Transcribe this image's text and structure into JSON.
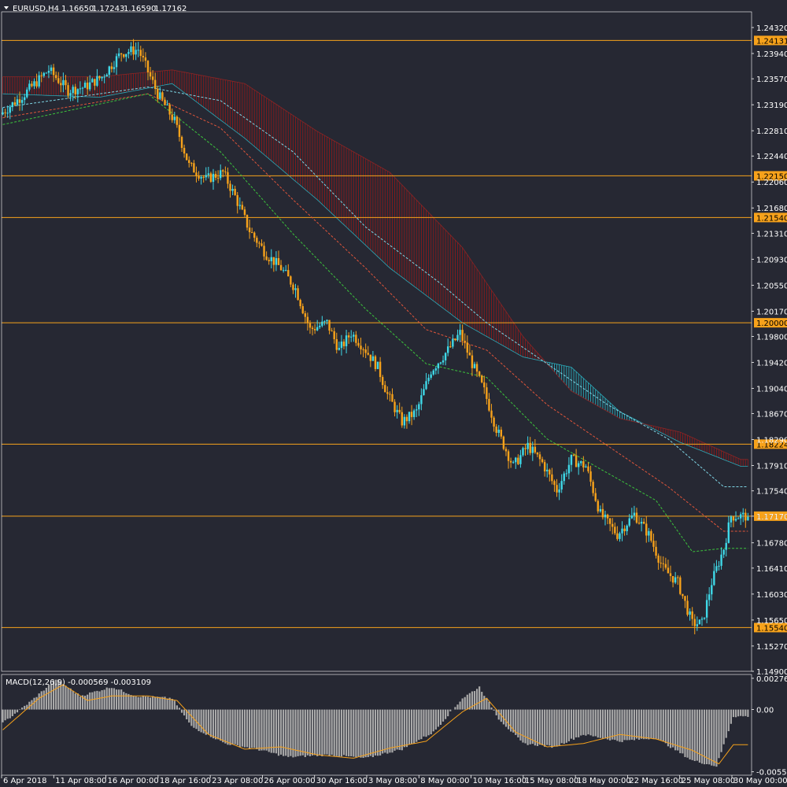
{
  "header": {
    "symbol": "EURUSD,H4",
    "open": "1.16650",
    "high": "1.17243",
    "low": "1.16590",
    "close": "1.17162"
  },
  "macd": {
    "label": "MACD(12,26,9) -0.000569 -0.003109",
    "ticks": [
      "0.00276",
      "0.00",
      "-0.00550"
    ]
  },
  "colors": {
    "background": "#262833",
    "bull": "#3fd9e8",
    "bear": "#f7a21b",
    "level": "#f7a21b",
    "cloud_bear": "#8c1a1a",
    "cloud_bull": "#2aa9b8",
    "macd_hist": "#a9a9a9",
    "macd_signal": "#f7a21b"
  },
  "chart_data": {
    "type": "candlestick",
    "ylim": [
      1.149,
      1.2455
    ],
    "y_ticks": [
      "1.24320",
      "1.23940",
      "1.23570",
      "1.23190",
      "1.22810",
      "1.22440",
      "1.22060",
      "1.21680",
      "1.21310",
      "1.20930",
      "1.20550",
      "1.20170",
      "1.19800",
      "1.19420",
      "1.19040",
      "1.18670",
      "1.18290",
      "1.17910",
      "1.17540",
      "1.17170",
      "1.16780",
      "1.16410",
      "1.16030",
      "1.15650",
      "1.15270",
      "1.14900"
    ],
    "x_labels": [
      "6 Apr 2018",
      "11 Apr 08:00",
      "16 Apr 00:00",
      "18 Apr 16:00",
      "23 Apr 08:00",
      "26 Apr 00:00",
      "30 Apr 16:00",
      "3 May 08:00",
      "8 May 00:00",
      "10 May 16:00",
      "15 May 08:00",
      "18 May 00:00",
      "22 May 16:00",
      "25 May 08:00",
      "30 May 00:00"
    ],
    "levels": [
      "1.24131",
      "1.22150",
      "1.21540",
      "1.20000",
      "1.18224",
      "1.17170",
      "1.15540"
    ],
    "anchors": [
      [
        0,
        1.2305
      ],
      [
        10,
        1.2335
      ],
      [
        20,
        1.237
      ],
      [
        28,
        1.234
      ],
      [
        35,
        1.2345
      ],
      [
        42,
        1.236
      ],
      [
        50,
        1.2395
      ],
      [
        57,
        1.24
      ],
      [
        65,
        1.2335
      ],
      [
        72,
        1.2295
      ],
      [
        78,
        1.223
      ],
      [
        85,
        1.221
      ],
      [
        92,
        1.222
      ],
      [
        97,
        1.2185
      ],
      [
        103,
        1.2135
      ],
      [
        110,
        1.21
      ],
      [
        116,
        1.208
      ],
      [
        122,
        1.205
      ],
      [
        128,
        1.199
      ],
      [
        135,
        1.2
      ],
      [
        140,
        1.196
      ],
      [
        145,
        1.1985
      ],
      [
        150,
        1.1965
      ],
      [
        156,
        1.1935
      ],
      [
        160,
        1.1895
      ],
      [
        166,
        1.1855
      ],
      [
        172,
        1.187
      ],
      [
        178,
        1.193
      ],
      [
        185,
        1.196
      ],
      [
        190,
        1.1985
      ],
      [
        195,
        1.194
      ],
      [
        200,
        1.19
      ],
      [
        205,
        1.1845
      ],
      [
        212,
        1.179
      ],
      [
        218,
        1.182
      ],
      [
        224,
        1.1795
      ],
      [
        230,
        1.1755
      ],
      [
        236,
        1.18
      ],
      [
        242,
        1.179
      ],
      [
        248,
        1.172
      ],
      [
        255,
        1.169
      ],
      [
        262,
        1.172
      ],
      [
        268,
        1.169
      ],
      [
        274,
        1.164
      ],
      [
        280,
        1.162
      ],
      [
        286,
        1.156
      ],
      [
        290,
        1.156
      ],
      [
        294,
        1.162
      ],
      [
        299,
        1.167
      ],
      [
        302,
        1.1717
      ]
    ],
    "ichimoku": {
      "span_a": [
        [
          0,
          1.2335
        ],
        [
          40,
          1.233
        ],
        [
          70,
          1.235
        ],
        [
          100,
          1.227
        ],
        [
          130,
          1.218
        ],
        [
          160,
          1.208
        ],
        [
          190,
          1.2
        ],
        [
          215,
          1.195
        ],
        [
          235,
          1.1935
        ],
        [
          255,
          1.187
        ],
        [
          280,
          1.1825
        ],
        [
          305,
          1.179
        ]
      ],
      "span_b": [
        [
          0,
          1.236
        ],
        [
          40,
          1.236
        ],
        [
          70,
          1.237
        ],
        [
          100,
          1.235
        ],
        [
          130,
          1.228
        ],
        [
          160,
          1.222
        ],
        [
          190,
          1.211
        ],
        [
          215,
          1.198
        ],
        [
          235,
          1.19
        ],
        [
          255,
          1.186
        ],
        [
          280,
          1.184
        ],
        [
          305,
          1.18
        ]
      ]
    },
    "ma_cyan": [
      [
        0,
        1.2315
      ],
      [
        60,
        1.2345
      ],
      [
        90,
        1.2325
      ],
      [
        120,
        1.225
      ],
      [
        150,
        1.214
      ],
      [
        180,
        1.206
      ],
      [
        200,
        1.2
      ],
      [
        225,
        1.194
      ],
      [
        250,
        1.188
      ],
      [
        275,
        1.183
      ],
      [
        298,
        1.176
      ]
    ],
    "ma_red": [
      [
        0,
        1.23
      ],
      [
        60,
        1.2335
      ],
      [
        90,
        1.2285
      ],
      [
        120,
        1.218
      ],
      [
        150,
        1.208
      ],
      [
        175,
        1.199
      ],
      [
        200,
        1.196
      ],
      [
        225,
        1.188
      ],
      [
        250,
        1.182
      ],
      [
        275,
        1.176
      ],
      [
        298,
        1.1695
      ]
    ],
    "ma_green": [
      [
        0,
        1.229
      ],
      [
        60,
        1.2335
      ],
      [
        90,
        1.225
      ],
      [
        120,
        1.213
      ],
      [
        150,
        1.202
      ],
      [
        175,
        1.194
      ],
      [
        200,
        1.192
      ],
      [
        225,
        1.183
      ],
      [
        250,
        1.178
      ],
      [
        270,
        1.174
      ],
      [
        285,
        1.1665
      ],
      [
        298,
        1.167
      ]
    ],
    "macd_ylim": [
      -0.0058,
      0.0031
    ],
    "macd_hist": [
      [
        0,
        -0.0012
      ],
      [
        12,
        0.0008
      ],
      [
        22,
        0.0027
      ],
      [
        32,
        0.0012
      ],
      [
        45,
        0.002
      ],
      [
        55,
        0.0012
      ],
      [
        70,
        0.001
      ],
      [
        78,
        -0.0015
      ],
      [
        92,
        -0.003
      ],
      [
        105,
        -0.0035
      ],
      [
        118,
        -0.0042
      ],
      [
        135,
        -0.004
      ],
      [
        150,
        -0.0043
      ],
      [
        165,
        -0.0035
      ],
      [
        178,
        -0.002
      ],
      [
        190,
        0.001
      ],
      [
        197,
        0.002
      ],
      [
        205,
        -0.0008
      ],
      [
        215,
        -0.003
      ],
      [
        228,
        -0.0033
      ],
      [
        240,
        -0.0022
      ],
      [
        255,
        -0.0028
      ],
      [
        270,
        -0.0025
      ],
      [
        285,
        -0.0045
      ],
      [
        295,
        -0.005
      ],
      [
        302,
        -0.0006
      ]
    ],
    "macd_signal": [
      [
        0,
        -0.0018
      ],
      [
        15,
        0.001
      ],
      [
        25,
        0.0022
      ],
      [
        35,
        0.0008
      ],
      [
        45,
        0.0012
      ],
      [
        60,
        0.0012
      ],
      [
        72,
        0.0008
      ],
      [
        85,
        -0.0022
      ],
      [
        100,
        -0.0035
      ],
      [
        115,
        -0.0033
      ],
      [
        130,
        -0.004
      ],
      [
        145,
        -0.0043
      ],
      [
        160,
        -0.0034
      ],
      [
        175,
        -0.0028
      ],
      [
        190,
        -0.0002
      ],
      [
        200,
        0.001
      ],
      [
        212,
        -0.002
      ],
      [
        225,
        -0.0033
      ],
      [
        240,
        -0.003
      ],
      [
        255,
        -0.0022
      ],
      [
        270,
        -0.0026
      ],
      [
        285,
        -0.0036
      ],
      [
        296,
        -0.0048
      ],
      [
        302,
        -0.0031
      ]
    ]
  }
}
